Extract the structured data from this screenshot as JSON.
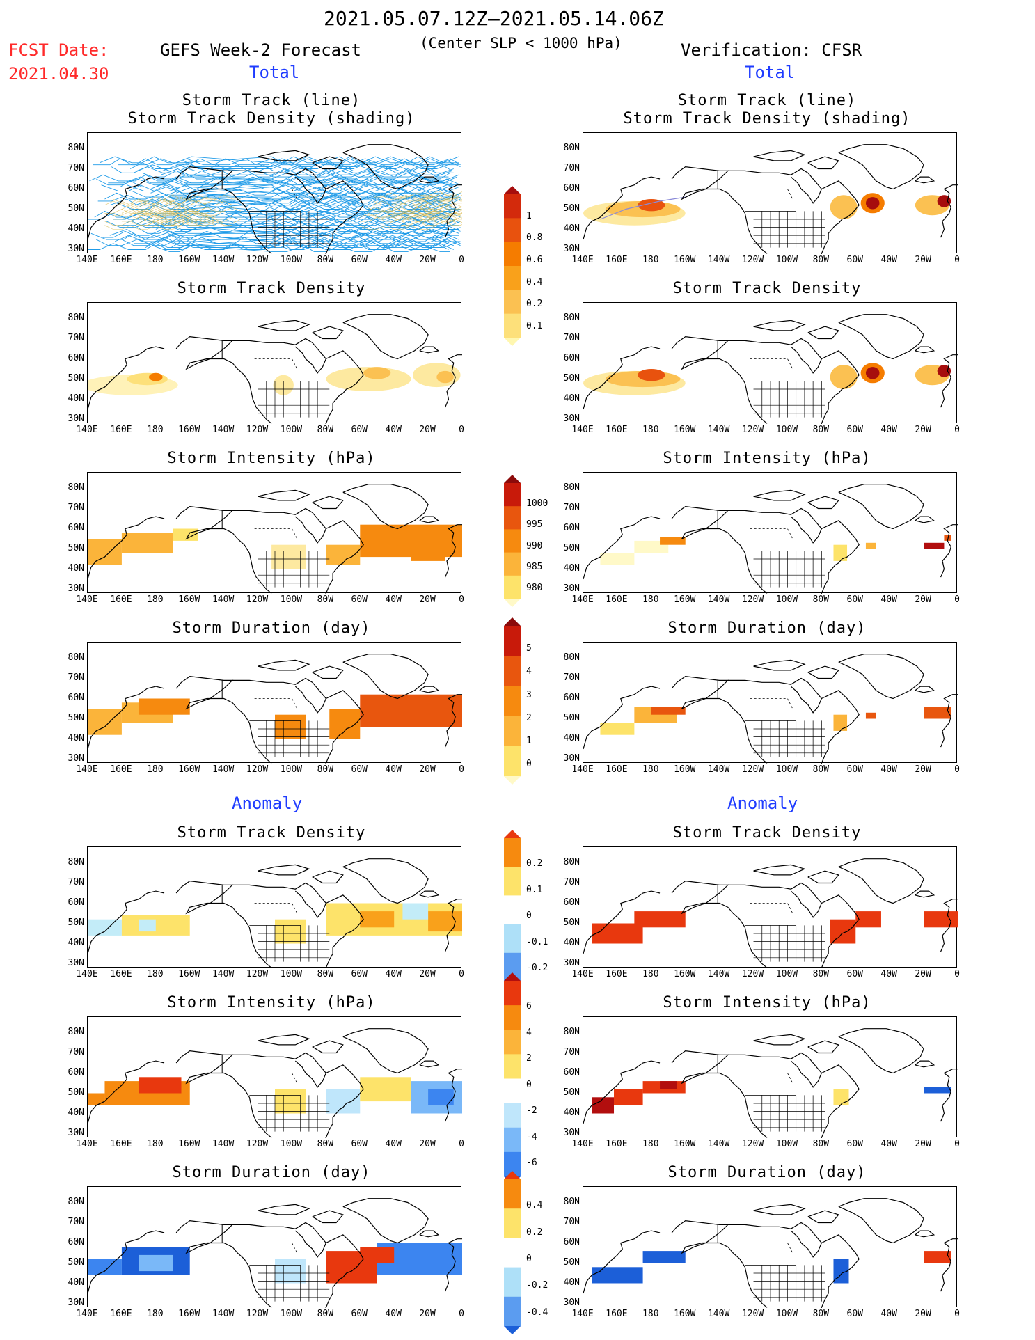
{
  "header": {
    "period": "2021.05.07.12Z–2021.05.14.06Z",
    "model": "GEFS Week-2 Forecast",
    "criterion": "(Center SLP < 1000 hPa)",
    "verification": "Verification: CFSR",
    "fcst_label": "FCST Date:",
    "fcst_date": "2021.04.30"
  },
  "sections": {
    "total": "Total",
    "anomaly": "Anomaly"
  },
  "titles": {
    "track1": "Storm Track (line)",
    "track2": "Storm Track Density (shading)",
    "density": "Storm Track Density",
    "intensity": "Storm Intensity (hPa)",
    "duration": "Storm Duration (day)"
  },
  "axes": {
    "lat_ticks": [
      "80N",
      "70N",
      "60N",
      "50N",
      "40N",
      "30N"
    ],
    "lon_ticks": [
      "140E",
      "160E",
      "180",
      "160W",
      "140W",
      "120W",
      "100W",
      "80W",
      "60W",
      "40W",
      "20W",
      "0"
    ]
  },
  "colorbars": {
    "total_density": {
      "labels": [
        "1",
        "0.8",
        "0.6",
        "0.4",
        "0.2",
        "0.1"
      ],
      "colors": [
        "#fff7b0",
        "#fde07a",
        "#fbc152",
        "#f9a11b",
        "#f57c00",
        "#e8520e",
        "#d32a0c",
        "#a60d0d"
      ]
    },
    "total_intensity": {
      "labels": [
        "1000",
        "995",
        "990",
        "985",
        "980"
      ],
      "colors": [
        "#fff9c8",
        "#fde36a",
        "#fbb43a",
        "#f68a0f",
        "#e8560e",
        "#c81a0a",
        "#8c0a0a"
      ]
    },
    "total_duration": {
      "labels": [
        "5",
        "4",
        "3",
        "2",
        "1",
        "0"
      ],
      "colors": [
        "#fff9c8",
        "#fde36a",
        "#fbb43a",
        "#f68a0f",
        "#e8560e",
        "#c81a0a",
        "#8c0a0a"
      ]
    },
    "anom_density": {
      "labels": [
        "0.2",
        "0.1",
        "0",
        "-0.1",
        "-0.2"
      ],
      "colors": [
        "#2e6fe0",
        "#5b9cf0",
        "#aee0f8",
        "#ffffff",
        "#fde36a",
        "#f68a0f",
        "#e8380e"
      ]
    },
    "anom_intensity": {
      "labels": [
        "6",
        "4",
        "2",
        "0",
        "-2",
        "-4",
        "-6"
      ],
      "colors": [
        "#1c5fd8",
        "#3c85f0",
        "#7ab8f8",
        "#bfe6fb",
        "#ffffff",
        "#fde36a",
        "#fbb43a",
        "#f68a0f",
        "#e8380e",
        "#b20e0e"
      ]
    },
    "anom_duration": {
      "labels": [
        "0.4",
        "0.2",
        "0",
        "-0.2",
        "-0.4"
      ],
      "colors": [
        "#1c5fd8",
        "#5b9cf0",
        "#aee0f8",
        "#ffffff",
        "#fde36a",
        "#f68a0f",
        "#e8380e"
      ]
    }
  },
  "colors": {
    "track_line": "#1f9be8",
    "coast": "#000000",
    "light_yellow": "#fde9a0",
    "yellow": "#fdd46a",
    "orange": "#f9a11b",
    "dark_orange": "#f57c00",
    "red": "#e8380e",
    "dark_red": "#a60d0d",
    "light_blue": "#c3ecf8",
    "blue": "#3c85f0",
    "dark_blue": "#1c5fd8"
  }
}
